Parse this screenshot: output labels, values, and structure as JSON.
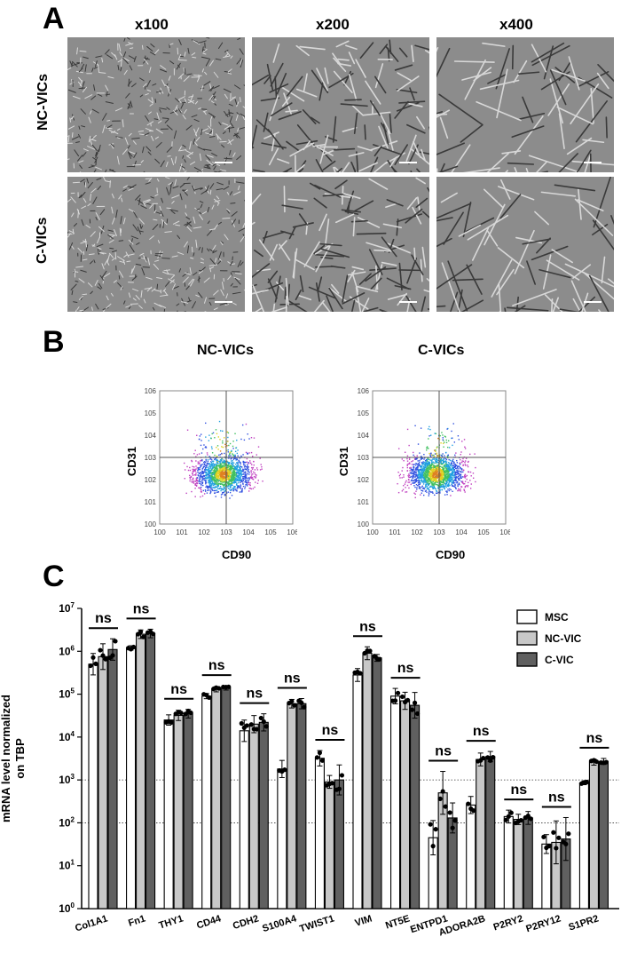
{
  "panelA": {
    "letter": "A",
    "magnifications": [
      "x100",
      "x200",
      "x400"
    ],
    "rows": [
      "NC-VICs",
      "C-VICs"
    ]
  },
  "panelB": {
    "letter": "B",
    "plots": [
      {
        "title": "NC-VICs",
        "ylabel": "CD31",
        "xlabel": "CD90"
      },
      {
        "title": "C-VICs",
        "ylabel": "CD31",
        "xlabel": "CD90"
      }
    ],
    "ticks": [
      "10^0",
      "10^1",
      "10^2",
      "10^3",
      "10^4",
      "10^5",
      "10^6"
    ]
  },
  "panelC": {
    "letter": "C",
    "chart_data": {
      "type": "bar",
      "ylabel": "mRNA level normalized on TBP",
      "yscale": "log",
      "ylim": [
        1,
        10000000
      ],
      "yticks": [
        "10^0",
        "10^1",
        "10^2",
        "10^3",
        "10^4",
        "10^5",
        "10^6",
        "10^7"
      ],
      "reference_lines": [
        100,
        1000
      ],
      "categories": [
        "Col1A1",
        "Fn1",
        "THY1",
        "CD44",
        "CDH2",
        "S100A4",
        "TWIST1",
        "VIM",
        "NT5E",
        "ENTPD1",
        "ADORA2B",
        "P2RY2",
        "P2RY12",
        "S1PR2"
      ],
      "significance": [
        "ns",
        "ns",
        "ns",
        "ns",
        "ns",
        "ns",
        "ns",
        "ns",
        "ns",
        "ns",
        "ns",
        "ns",
        "ns",
        "ns"
      ],
      "series": [
        {
          "name": "MSC",
          "color": "#ffffff",
          "values": [
            500000,
            1200000,
            25000,
            90000,
            14000,
            1800,
            3200,
            280000,
            90000,
            45,
            260,
            140,
            32,
            850
          ],
          "errors": [
            0.25,
            0.05,
            0.12,
            0.06,
            0.25,
            0.2,
            0.18,
            0.15,
            0.18,
            0.4,
            0.2,
            0.15,
            0.22,
            0.04
          ]
        },
        {
          "name": "NC-VIC",
          "color": "#c8c8c8",
          "values": [
            750000,
            2500000,
            32000,
            130000,
            20000,
            60000,
            900,
            900000,
            70000,
            500,
            3000,
            120,
            35,
            2600
          ],
          "errors": [
            0.3,
            0.1,
            0.12,
            0.06,
            0.2,
            0.1,
            0.15,
            0.15,
            0.2,
            0.5,
            0.15,
            0.12,
            0.5,
            0.07
          ]
        },
        {
          "name": "C-VIC",
          "color": "#606060",
          "values": [
            1100000,
            2600000,
            35000,
            140000,
            22000,
            60000,
            1000,
            700000,
            55000,
            130,
            3500,
            130,
            42,
            2700
          ],
          "errors": [
            0.25,
            0.1,
            0.1,
            0.05,
            0.2,
            0.12,
            0.35,
            0.08,
            0.3,
            0.35,
            0.12,
            0.15,
            0.5,
            0.07
          ]
        }
      ],
      "legend_position": "top-right"
    }
  }
}
